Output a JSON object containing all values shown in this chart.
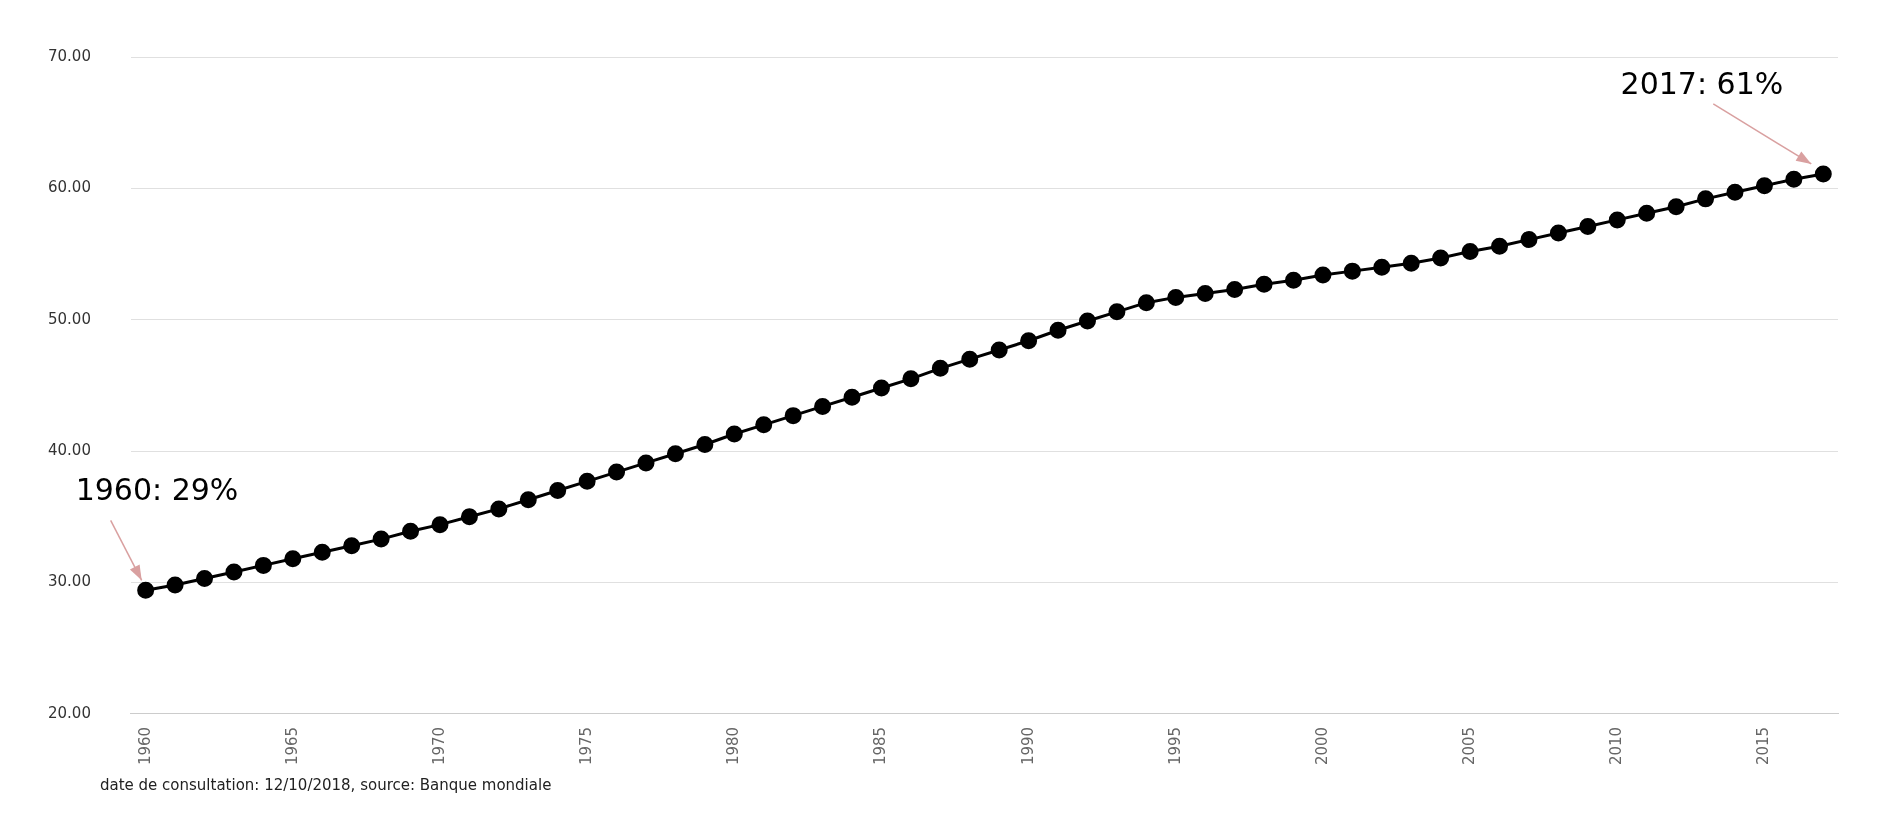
{
  "chart_data": {
    "type": "line",
    "categories": [
      "1960",
      null,
      null,
      null,
      null,
      "1965",
      null,
      null,
      null,
      null,
      "1970",
      null,
      null,
      null,
      null,
      "1975",
      null,
      null,
      null,
      null,
      "1980",
      null,
      null,
      null,
      null,
      "1985",
      null,
      null,
      null,
      null,
      "1990",
      null,
      null,
      null,
      null,
      "1995",
      null,
      null,
      null,
      null,
      "2000",
      null,
      null,
      null,
      null,
      "2005",
      null,
      null,
      null,
      null,
      "2010",
      null,
      null,
      null,
      null,
      "2015",
      null,
      null
    ],
    "series": [
      {
        "color": "#000000",
        "values": [
          29.4,
          29.8,
          30.3,
          30.8,
          31.3,
          31.8,
          32.3,
          32.8,
          33.3,
          33.9,
          34.4,
          35.0,
          35.6,
          36.3,
          37.0,
          37.7,
          38.4,
          39.1,
          39.8,
          40.5,
          41.3,
          42.0,
          42.7,
          43.4,
          44.1,
          44.8,
          45.5,
          46.3,
          47.0,
          47.7,
          48.4,
          49.2,
          49.9,
          50.6,
          51.3,
          51.7,
          52.0,
          52.3,
          52.7,
          53.0,
          53.4,
          53.7,
          54.0,
          54.3,
          54.7,
          55.2,
          55.6,
          56.1,
          56.6,
          57.1,
          57.6,
          58.1,
          58.6,
          59.2,
          59.7,
          60.2,
          60.7,
          61.1
        ]
      }
    ],
    "ylim": [
      20,
      70
    ],
    "yticks": [
      {
        "value": 20,
        "label": "20.00"
      },
      {
        "value": 30,
        "label": "30.00"
      },
      {
        "value": 40,
        "label": "40.00"
      },
      {
        "value": 50,
        "label": "50.00"
      },
      {
        "value": 60,
        "label": "60.00"
      },
      {
        "value": 70,
        "label": "70.00"
      }
    ],
    "grid": "y",
    "legend": false,
    "marker": "circle",
    "line_style": "solid",
    "annotations": [
      {
        "text": "1960: 29%",
        "x": "1960",
        "y": 29.4
      },
      "2017: 61%",
      "date de consultation: 12/10/2018, source: Banque mondiale"
    ]
  }
}
